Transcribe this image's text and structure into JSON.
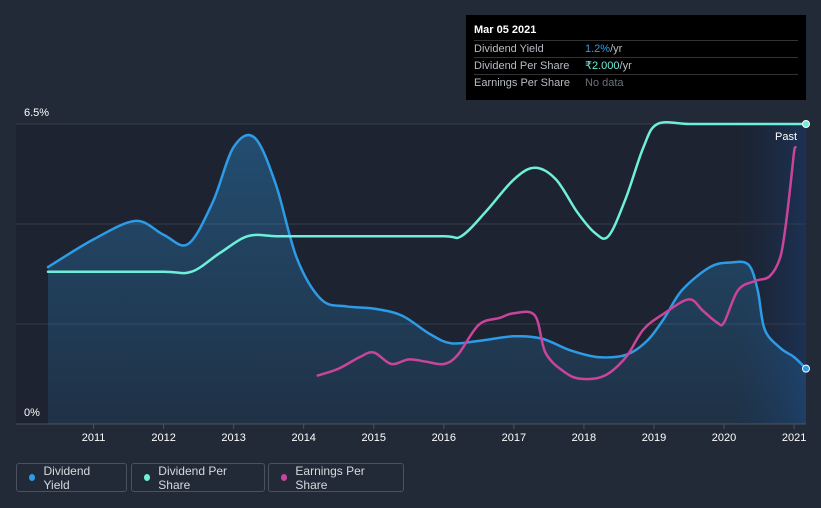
{
  "chart_data": {
    "type": "line",
    "title": "",
    "xlabel": "",
    "ylabel": "",
    "y_axis": {
      "max_label": "6.5%",
      "min_label": "0%",
      "ylim": [
        0,
        6.5
      ]
    },
    "x_ticks": [
      "2011",
      "2012",
      "2013",
      "2014",
      "2015",
      "2016",
      "2017",
      "2018",
      "2019",
      "2020",
      "2021"
    ],
    "xlim": [
      2010.35,
      2021.17
    ],
    "past_label": "Past",
    "past_start": 2020.17,
    "series": [
      {
        "name": "Dividend Yield",
        "color": "#2e9be6",
        "fill": true,
        "points": [
          [
            2010.35,
            3.4
          ],
          [
            2011.0,
            4.0
          ],
          [
            2011.6,
            4.4
          ],
          [
            2012.0,
            4.1
          ],
          [
            2012.35,
            3.9
          ],
          [
            2012.7,
            4.8
          ],
          [
            2013.0,
            6.0
          ],
          [
            2013.3,
            6.2
          ],
          [
            2013.6,
            5.2
          ],
          [
            2013.9,
            3.6
          ],
          [
            2014.25,
            2.7
          ],
          [
            2014.6,
            2.55
          ],
          [
            2015.0,
            2.5
          ],
          [
            2015.4,
            2.35
          ],
          [
            2015.8,
            1.95
          ],
          [
            2016.1,
            1.75
          ],
          [
            2016.5,
            1.8
          ],
          [
            2017.0,
            1.9
          ],
          [
            2017.4,
            1.85
          ],
          [
            2017.8,
            1.6
          ],
          [
            2018.2,
            1.45
          ],
          [
            2018.6,
            1.5
          ],
          [
            2018.9,
            1.8
          ],
          [
            2019.15,
            2.3
          ],
          [
            2019.4,
            2.9
          ],
          [
            2019.8,
            3.4
          ],
          [
            2020.1,
            3.5
          ],
          [
            2020.35,
            3.45
          ],
          [
            2020.48,
            2.9
          ],
          [
            2020.58,
            2.05
          ],
          [
            2020.8,
            1.65
          ],
          [
            2021.0,
            1.45
          ],
          [
            2021.17,
            1.2
          ]
        ]
      },
      {
        "name": "Dividend Per Share",
        "color": "#6fefd9",
        "fill": false,
        "points": [
          [
            2010.35,
            3.3
          ],
          [
            2011.0,
            3.3
          ],
          [
            2012.0,
            3.3
          ],
          [
            2012.4,
            3.3
          ],
          [
            2012.8,
            3.7
          ],
          [
            2013.2,
            4.07
          ],
          [
            2013.6,
            4.07
          ],
          [
            2014.0,
            4.07
          ],
          [
            2015.0,
            4.07
          ],
          [
            2016.0,
            4.07
          ],
          [
            2016.25,
            4.07
          ],
          [
            2016.6,
            4.6
          ],
          [
            2017.0,
            5.3
          ],
          [
            2017.3,
            5.55
          ],
          [
            2017.6,
            5.3
          ],
          [
            2017.9,
            4.6
          ],
          [
            2018.15,
            4.15
          ],
          [
            2018.35,
            4.07
          ],
          [
            2018.6,
            4.9
          ],
          [
            2018.85,
            6.0
          ],
          [
            2019.05,
            6.5
          ],
          [
            2019.5,
            6.5
          ],
          [
            2020.0,
            6.5
          ],
          [
            2020.5,
            6.5
          ],
          [
            2021.17,
            6.5
          ]
        ]
      },
      {
        "name": "Earnings Per Share",
        "color": "#c9449b",
        "fill": false,
        "points": [
          [
            2014.2,
            1.05
          ],
          [
            2014.5,
            1.2
          ],
          [
            2014.8,
            1.45
          ],
          [
            2015.0,
            1.55
          ],
          [
            2015.25,
            1.3
          ],
          [
            2015.5,
            1.4
          ],
          [
            2015.75,
            1.35
          ],
          [
            2016.0,
            1.3
          ],
          [
            2016.2,
            1.5
          ],
          [
            2016.5,
            2.15
          ],
          [
            2016.8,
            2.3
          ],
          [
            2017.0,
            2.4
          ],
          [
            2017.3,
            2.35
          ],
          [
            2017.45,
            1.55
          ],
          [
            2017.7,
            1.15
          ],
          [
            2017.95,
            0.98
          ],
          [
            2018.3,
            1.05
          ],
          [
            2018.6,
            1.45
          ],
          [
            2018.85,
            2.05
          ],
          [
            2019.15,
            2.4
          ],
          [
            2019.5,
            2.7
          ],
          [
            2019.7,
            2.45
          ],
          [
            2019.9,
            2.2
          ],
          [
            2020.0,
            2.2
          ],
          [
            2020.2,
            2.9
          ],
          [
            2020.45,
            3.1
          ],
          [
            2020.65,
            3.2
          ],
          [
            2020.8,
            3.6
          ],
          [
            2020.88,
            4.3
          ],
          [
            2020.95,
            5.2
          ],
          [
            2021.0,
            5.9
          ],
          [
            2021.02,
            6.0
          ]
        ]
      }
    ]
  },
  "tooltip": {
    "date": "Mar 05 2021",
    "rows": [
      {
        "label": "Dividend Yield",
        "value": "1.2%",
        "unit": " /yr"
      },
      {
        "label": "Dividend Per Share",
        "value": "₹2.000",
        "unit": " /yr"
      },
      {
        "label": "Earnings Per Share",
        "value": "No data"
      }
    ]
  },
  "legend": {
    "items": [
      {
        "label": "Dividend Yield",
        "color": "#2e9be6"
      },
      {
        "label": "Dividend Per Share",
        "color": "#6fefd9"
      },
      {
        "label": "Earnings Per Share",
        "color": "#c9449b"
      }
    ]
  }
}
